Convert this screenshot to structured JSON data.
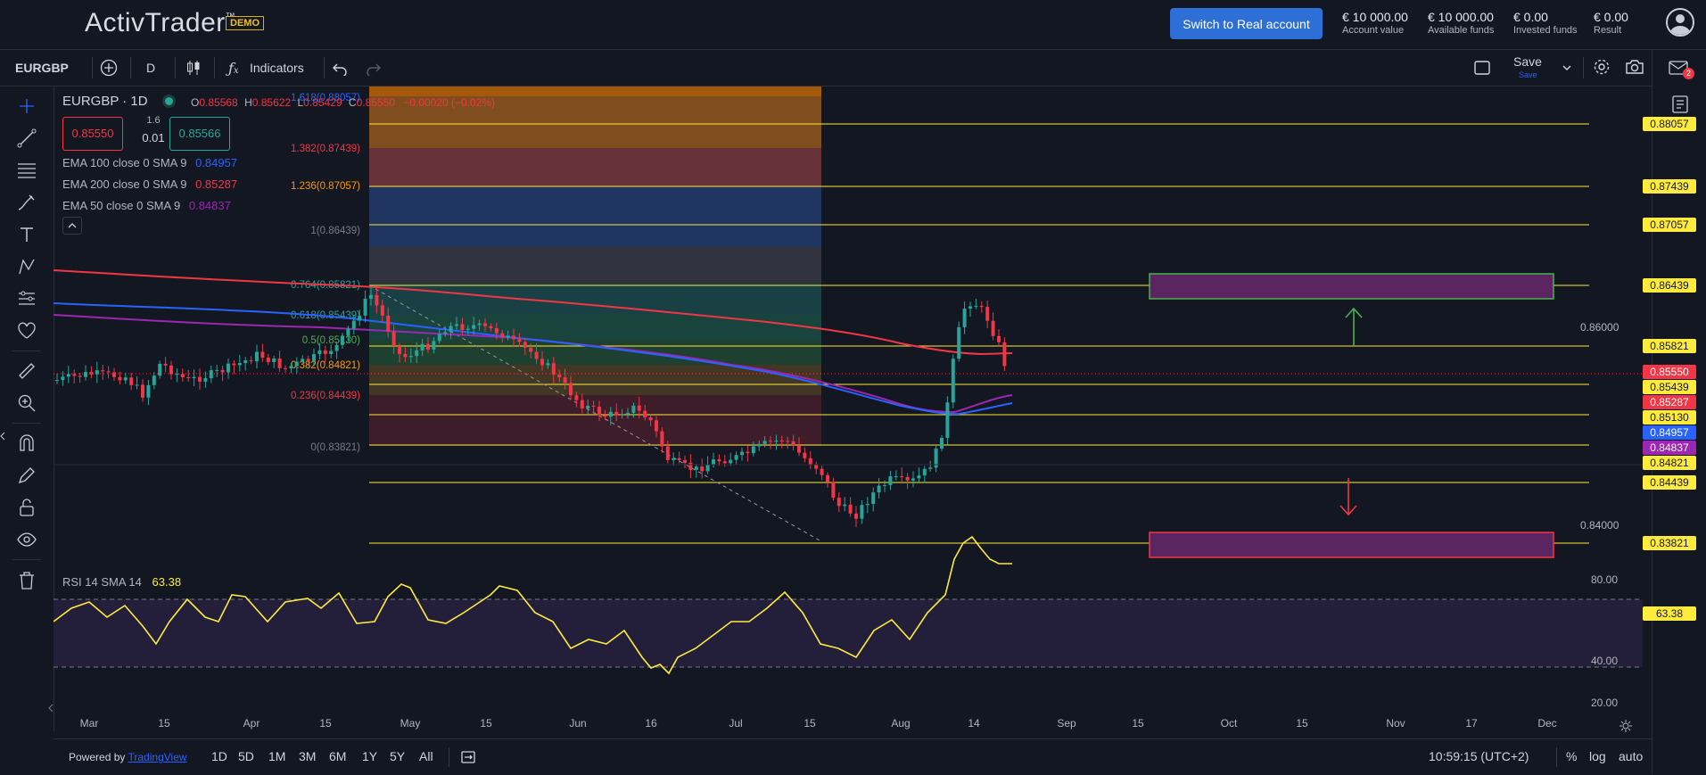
{
  "app": {
    "logo": "ActivTrader",
    "trademark": "™",
    "demo_badge": "DEMO",
    "real_button": "Switch to Real account"
  },
  "funds": [
    {
      "value": "€ 10 000.00",
      "label": "Account value"
    },
    {
      "value": "€ 10 000.00",
      "label": "Available funds"
    },
    {
      "value": "€ 0.00",
      "label": "Invested funds"
    },
    {
      "value": "€ 0.00",
      "label": "Result"
    }
  ],
  "toolbar": {
    "symbol": "EURGBP",
    "interval": "D",
    "indicators": "Indicators",
    "save": "Save",
    "save_sub": "Save"
  },
  "legend": {
    "title": "EURGBP · 1D",
    "ohlc": [
      {
        "k": "O",
        "v": "0.85568"
      },
      {
        "k": "H",
        "v": "0.85622"
      },
      {
        "k": "L",
        "v": "0.85429"
      },
      {
        "k": "C",
        "v": "0.85550"
      }
    ],
    "change": "−0.00020 (−0.02%)",
    "bid": "0.85550",
    "spread_top": "1.6",
    "spread_bottom": "0.01",
    "ask": "0.85566",
    "ema": [
      {
        "label": "EMA 100 close 0 SMA 9",
        "value": "0.84957",
        "color": "#2962ff"
      },
      {
        "label": "EMA 200 close 0 SMA 9",
        "value": "0.85287",
        "color": "#f23645"
      },
      {
        "label": "EMA 50 close 0 SMA 9",
        "value": "0.84837",
        "color": "#9c27b0"
      }
    ]
  },
  "fib_levels": [
    {
      "label": "1.618(0.88057)",
      "color": "#2962ff"
    },
    {
      "label": "1.382(0.87439)",
      "color": "#f23645"
    },
    {
      "label": "1.236(0.87057)",
      "color": "#ff9800"
    },
    {
      "label": "1(0.86439)",
      "color": "#787b86"
    },
    {
      "label": "0.764(0.85821)",
      "color": "#26a69a"
    },
    {
      "label": "0.618(0.85439)",
      "color": "#26a69a"
    },
    {
      "label": "0.5(0.85130)",
      "color": "#4caf50"
    },
    {
      "label": "0.382(0.84821)",
      "color": "#ff9800"
    },
    {
      "label": "0.236(0.84439)",
      "color": "#f23645"
    },
    {
      "label": "0(0.83821)",
      "color": "#787b86"
    }
  ],
  "price_axis_ticks": [
    "0.86000",
    "0.84000"
  ],
  "price_tags": [
    {
      "text": "0.88057",
      "bg": "#ffeb3b"
    },
    {
      "text": "0.87439",
      "bg": "#ffeb3b"
    },
    {
      "text": "0.87057",
      "bg": "#ffeb3b"
    },
    {
      "text": "0.86439",
      "bg": "#ffeb3b"
    },
    {
      "text": "0.85821",
      "bg": "#ffeb3b"
    },
    {
      "text": "0.85550",
      "bg": "#f23645"
    },
    {
      "text": "0.85439",
      "bg": "#ffeb3b"
    },
    {
      "text": "0.85287",
      "bg": "#f23645"
    },
    {
      "text": "0.85130",
      "bg": "#ffeb3b"
    },
    {
      "text": "0.84957",
      "bg": "#2962ff"
    },
    {
      "text": "0.84837",
      "bg": "#9c27b0"
    },
    {
      "text": "0.84821",
      "bg": "#ffeb3b"
    },
    {
      "text": "0.84439",
      "bg": "#ffeb3b"
    },
    {
      "text": "0.83821",
      "bg": "#ffeb3b"
    }
  ],
  "rsi": {
    "label": "RSI 14 SMA 14",
    "value": "63.38",
    "ticks": [
      "80.00",
      "40.00",
      "20.00"
    ],
    "tag": "63.38"
  },
  "time_axis": [
    "Mar",
    "15",
    "Apr",
    "15",
    "May",
    "15",
    "Jun",
    "16",
    "Jul",
    "15",
    "Aug",
    "14",
    "Sep",
    "15",
    "Oct",
    "15",
    "Nov",
    "17",
    "Dec"
  ],
  "bottom": {
    "powered": "Powered by",
    "powered_link": "TradingView",
    "ranges": [
      "1D",
      "5D",
      "1M",
      "3M",
      "6M",
      "1Y",
      "5Y",
      "All"
    ],
    "clock": "10:59:15 (UTC+2)",
    "pct": "%",
    "log": "log",
    "auto": "auto"
  },
  "notifications": {
    "badge": "2"
  }
}
